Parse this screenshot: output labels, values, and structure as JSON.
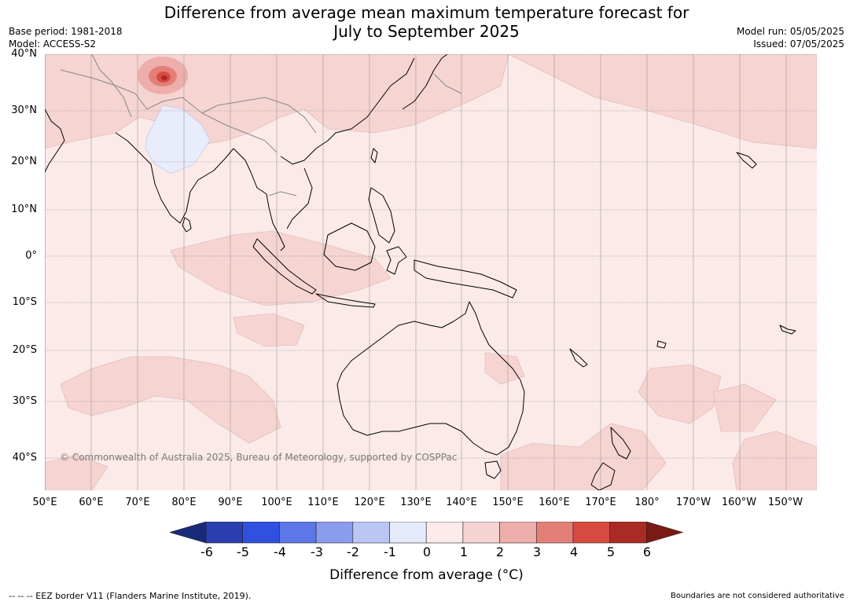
{
  "title_line1": "Difference from average mean maximum temperature forecast for",
  "title_line2": "July to September 2025",
  "base_period": "Base period: 1981-2018",
  "model": "Model: ACCESS-S2",
  "model_run": "Model run: 05/05/2025",
  "issued": "Issued: 07/05/2025",
  "lat_labels": [
    "40°N",
    "30°N",
    "20°N",
    "10°N",
    "0°",
    "10°S",
    "20°S",
    "30°S",
    "40°S"
  ],
  "lon_labels": [
    "50°E",
    "60°E",
    "70°E",
    "80°E",
    "90°E",
    "100°E",
    "110°E",
    "120°E",
    "130°E",
    "140°E",
    "150°E",
    "160°E",
    "170°E",
    "180°",
    "170°W",
    "160°W",
    "150°W"
  ],
  "copyright": "© Commonwealth of Australia 2025, Bureau of Meteorology, supported by COSPPac",
  "colorbar": {
    "ticks": [
      "-6",
      "-5",
      "-4",
      "-3",
      "-2",
      "-1",
      "0",
      "1",
      "2",
      "3",
      "4",
      "5",
      "6"
    ],
    "colors": [
      "#1a2a7a",
      "#2a3eb0",
      "#3050e0",
      "#5c78e8",
      "#8a9cee",
      "#bcc6f5",
      "#e6ebfb",
      "#fdeaea",
      "#f6d3d3",
      "#eeaeab",
      "#e47f78",
      "#d84a40",
      "#aa2a24",
      "#7b1a15"
    ],
    "label": "Difference from average (°C)"
  },
  "footer_left": "--  --  -- EEZ border V11 (Flanders Marine Institute, 2019).",
  "footer_right": "Boundaries are not considered authoritative"
}
